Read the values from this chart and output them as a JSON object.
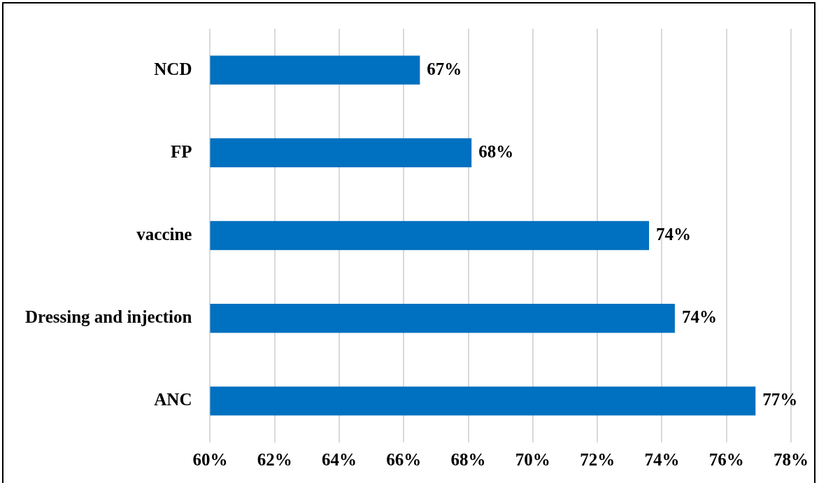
{
  "chart_data": {
    "type": "bar",
    "orientation": "horizontal",
    "categories": [
      "NCD",
      "FP",
      "vaccine",
      "Dressing and injection",
      "ANC"
    ],
    "values": [
      66.5,
      68.1,
      73.6,
      74.4,
      76.9
    ],
    "value_labels": [
      "67%",
      "68%",
      "74%",
      "74%",
      "77%"
    ],
    "color": "#0070c0",
    "xlim": [
      60,
      78
    ],
    "xticks": [
      {
        "value": 60,
        "label": "60%"
      },
      {
        "value": 62,
        "label": "62%"
      },
      {
        "value": 64,
        "label": "64%"
      },
      {
        "value": 66,
        "label": "66%"
      },
      {
        "value": 68,
        "label": "68%"
      },
      {
        "value": 70,
        "label": "70%"
      },
      {
        "value": 72,
        "label": "72%"
      },
      {
        "value": 74,
        "label": "74%"
      },
      {
        "value": 76,
        "label": "76%"
      },
      {
        "value": 78,
        "label": "78%"
      }
    ],
    "grid": "x",
    "legend": false
  }
}
